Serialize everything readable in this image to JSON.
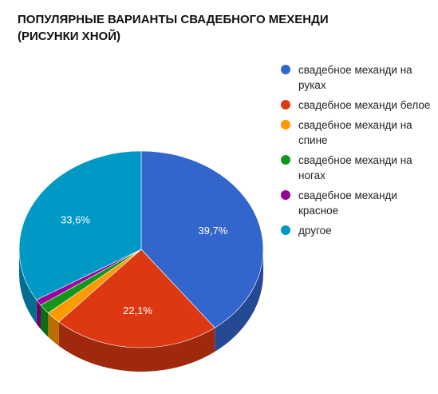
{
  "chart_data": {
    "type": "pie",
    "title": "ПОПУЛЯРНЫЕ ВАРИАНТЫ СВАДЕБНОГО МЕХЕНДИ (РИСУНКИ ХНОЙ)",
    "legend_position": "right",
    "three_d": true,
    "slices": [
      {
        "label": "свадебное механди на руках",
        "value": 39.7,
        "display": "39,7%",
        "color": "#3366cc"
      },
      {
        "label": "свадебное механди белое",
        "value": 22.1,
        "display": "22,1%",
        "color": "#dc3912"
      },
      {
        "label": "свадебное механди на спине",
        "value": 2.0,
        "display": "",
        "color": "#ff9900"
      },
      {
        "label": "свадебное механди на ногах",
        "value": 1.6,
        "display": "",
        "color": "#109618"
      },
      {
        "label": "свадебное механди красное",
        "value": 1.0,
        "display": "",
        "color": "#990099"
      },
      {
        "label": "другое",
        "value": 33.6,
        "display": "33,6%",
        "color": "#0099c6"
      }
    ]
  }
}
